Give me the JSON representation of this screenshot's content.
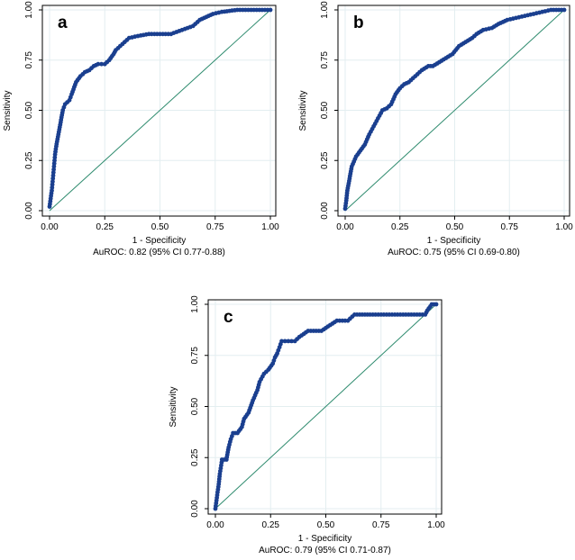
{
  "colors": {
    "roc": "#1a3f8f",
    "reference": "#2e8b6e",
    "grid": "#e3eef0",
    "frame": "#000000"
  },
  "chart_data": [
    {
      "type": "line",
      "panel_label": "a",
      "xlabel": "1 - Specificity",
      "ylabel": "Sensitivity",
      "caption": "AuROC: 0.82 (95% CI 0.77-0.88)",
      "xlim": [
        0,
        1
      ],
      "ylim": [
        0,
        1
      ],
      "x_ticks": [
        "0.00",
        "0.25",
        "0.50",
        "0.75",
        "1.00"
      ],
      "y_ticks": [
        "0.00",
        "0.25",
        "0.50",
        "0.75",
        "1.00"
      ],
      "grid": true,
      "series": [
        {
          "name": "ROC",
          "x": [
            0,
            0.005,
            0.01,
            0.015,
            0.02,
            0.025,
            0.03,
            0.04,
            0.05,
            0.06,
            0.07,
            0.08,
            0.09,
            0.1,
            0.12,
            0.14,
            0.16,
            0.18,
            0.2,
            0.22,
            0.25,
            0.27,
            0.29,
            0.3,
            0.33,
            0.36,
            0.4,
            0.45,
            0.5,
            0.55,
            0.6,
            0.65,
            0.68,
            0.72,
            0.74,
            0.78,
            0.85,
            0.9,
            0.95,
            1.0
          ],
          "y": [
            0.02,
            0.06,
            0.1,
            0.16,
            0.22,
            0.28,
            0.32,
            0.38,
            0.44,
            0.5,
            0.53,
            0.54,
            0.55,
            0.58,
            0.64,
            0.67,
            0.69,
            0.7,
            0.72,
            0.73,
            0.73,
            0.75,
            0.78,
            0.8,
            0.83,
            0.86,
            0.87,
            0.88,
            0.88,
            0.88,
            0.9,
            0.92,
            0.95,
            0.97,
            0.98,
            0.99,
            1.0,
            1.0,
            1.0,
            1.0
          ]
        },
        {
          "name": "Reference",
          "x": [
            0,
            1
          ],
          "y": [
            0,
            1
          ]
        }
      ]
    },
    {
      "type": "line",
      "panel_label": "b",
      "xlabel": "1 - Specificity",
      "ylabel": "Sensitivity",
      "caption": "AuROC: 0.75 (95% CI 0.69-0.80)",
      "xlim": [
        0,
        1
      ],
      "ylim": [
        0,
        1
      ],
      "x_ticks": [
        "0.00",
        "0.25",
        "0.50",
        "0.75",
        "1.00"
      ],
      "y_ticks": [
        "0.00",
        "0.25",
        "0.50",
        "0.75",
        "1.00"
      ],
      "grid": true,
      "series": [
        {
          "name": "ROC",
          "x": [
            0,
            0.005,
            0.01,
            0.02,
            0.03,
            0.05,
            0.07,
            0.09,
            0.11,
            0.13,
            0.15,
            0.17,
            0.19,
            0.21,
            0.23,
            0.25,
            0.27,
            0.29,
            0.31,
            0.33,
            0.35,
            0.38,
            0.4,
            0.43,
            0.46,
            0.49,
            0.52,
            0.55,
            0.58,
            0.6,
            0.63,
            0.67,
            0.7,
            0.74,
            0.78,
            0.82,
            0.86,
            0.9,
            0.94,
            1.0
          ],
          "y": [
            0.01,
            0.05,
            0.1,
            0.16,
            0.22,
            0.27,
            0.3,
            0.33,
            0.38,
            0.42,
            0.46,
            0.5,
            0.51,
            0.53,
            0.58,
            0.61,
            0.63,
            0.64,
            0.66,
            0.68,
            0.7,
            0.72,
            0.72,
            0.74,
            0.76,
            0.78,
            0.82,
            0.84,
            0.86,
            0.88,
            0.9,
            0.91,
            0.93,
            0.95,
            0.96,
            0.97,
            0.98,
            0.99,
            1.0,
            1.0
          ]
        },
        {
          "name": "Reference",
          "x": [
            0,
            1
          ],
          "y": [
            0,
            1
          ]
        }
      ]
    },
    {
      "type": "line",
      "panel_label": "c",
      "xlabel": "1 - Specificity",
      "ylabel": "Sensitivity",
      "caption": "AuROC: 0.79 (95% CI 0.71-0.87)",
      "xlim": [
        0,
        1
      ],
      "ylim": [
        0,
        1
      ],
      "x_ticks": [
        "0.00",
        "0.25",
        "0.50",
        "0.75",
        "1.00"
      ],
      "y_ticks": [
        "0.00",
        "0.25",
        "0.50",
        "0.75",
        "1.00"
      ],
      "grid": true,
      "series": [
        {
          "name": "ROC",
          "x": [
            0,
            0.005,
            0.01,
            0.015,
            0.02,
            0.03,
            0.04,
            0.05,
            0.06,
            0.07,
            0.08,
            0.1,
            0.12,
            0.13,
            0.15,
            0.17,
            0.19,
            0.2,
            0.22,
            0.24,
            0.26,
            0.27,
            0.28,
            0.29,
            0.3,
            0.33,
            0.36,
            0.38,
            0.42,
            0.48,
            0.55,
            0.6,
            0.63,
            0.7,
            0.8,
            0.9,
            0.95,
            0.96,
            0.98,
            1.0
          ],
          "y": [
            0.0,
            0.04,
            0.08,
            0.12,
            0.17,
            0.24,
            0.24,
            0.24,
            0.3,
            0.34,
            0.37,
            0.37,
            0.4,
            0.44,
            0.47,
            0.53,
            0.58,
            0.62,
            0.66,
            0.68,
            0.71,
            0.74,
            0.76,
            0.79,
            0.82,
            0.82,
            0.82,
            0.84,
            0.87,
            0.87,
            0.92,
            0.92,
            0.95,
            0.95,
            0.95,
            0.95,
            0.95,
            0.97,
            1.0,
            1.0
          ]
        },
        {
          "name": "Reference",
          "x": [
            0,
            1
          ],
          "y": [
            0,
            1
          ]
        }
      ]
    }
  ]
}
